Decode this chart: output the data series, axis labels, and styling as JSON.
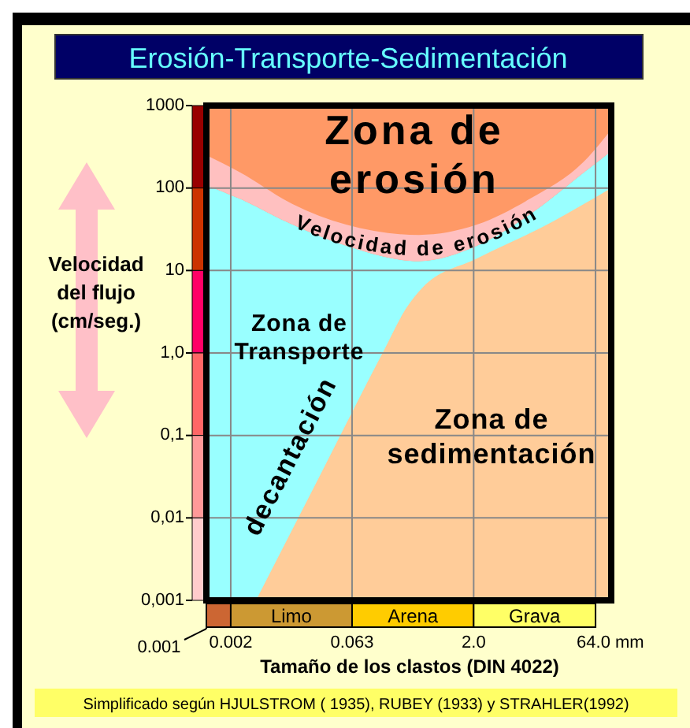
{
  "chart_data": {
    "type": "area",
    "title": "Erosión-Transporte-Sedimentación",
    "xlabel": "Tamaño de los clastos (DIN 4022)",
    "ylabel": "Velocidad del flujo (cm/seg.)",
    "log": "xy",
    "xlim": [
      0.001,
      100
    ],
    "ylim": [
      0.001,
      1000
    ],
    "xticks": [
      {
        "value": 0.001,
        "label": null
      },
      0.002,
      0.063,
      {
        "value": 2,
        "label": "2.0"
      },
      {
        "value": 64,
        "label": "64.0 mm"
      }
    ],
    "yticks": [
      {
        "value": 0.001,
        "label": "0,001"
      },
      {
        "value": 0.01,
        "label": "0,01"
      },
      {
        "value": 0.1,
        "label": "0,1"
      },
      {
        "value": 1,
        "label": "1,0"
      },
      10,
      100,
      1000
    ],
    "grid": true,
    "series": [
      {
        "color": "#ff9966",
        "x": [
          0.001,
          100
        ],
        "values": [
          1000,
          1000
        ]
      },
      {
        "color": "#99ffff",
        "x": [
          0.001,
          0.0026,
          0.0116,
          0.053,
          0.42,
          2.2,
          9.9,
          46,
          100
        ],
        "values": [
          108,
          74,
          36,
          20,
          13,
          20,
          48,
          155,
          280
        ]
      },
      {
        "color": "#ffcc99",
        "x": [
          0.0041,
          0.025,
          0.15,
          0.3,
          0.46,
          2.2,
          13.6,
          100
        ],
        "values": [
          0.001,
          0.032,
          1,
          3.6,
          6.1,
          14,
          33,
          100
        ]
      },
      {
        "color": "#ffc0c0",
        "x": [
          0.001,
          0.0026,
          0.0116,
          0.053,
          0.42,
          2.2,
          9.9,
          46,
          100
        ],
        "values": [
          250,
          155,
          64,
          36,
          27,
          36,
          74,
          210,
          510
        ]
      }
    ],
    "annotations": [
      "Zona de erosión",
      "Velocidad de erosión",
      "Zona de Transporte",
      "Zona de sedimentación",
      "decantación",
      "Simplificado según HJULSTROM ( 1935),  RUBEY (1933) y STRAHLER(1992)",
      "Limo",
      "Arena",
      "Grava",
      "0.001"
    ]
  }
}
